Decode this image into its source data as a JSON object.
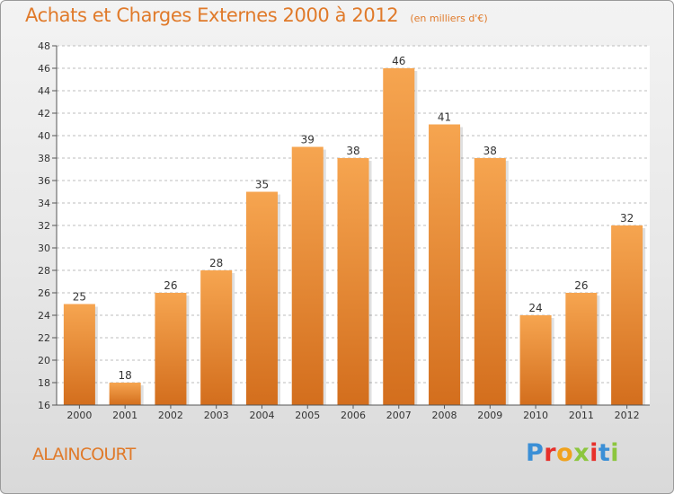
{
  "header": {
    "title": "Achats et Charges Externes 2000 à 2012",
    "subtitle": "(en milliers d'€)"
  },
  "footer": {
    "commune": "ALAINCOURT",
    "brand": [
      "P",
      "r",
      "o",
      "x",
      "i",
      "t",
      "i"
    ]
  },
  "chart_data": {
    "type": "bar",
    "title": "Achats et Charges Externes 2000 à 2012",
    "subtitle": "(en milliers d'€)",
    "categories": [
      "2000",
      "2001",
      "2002",
      "2003",
      "2004",
      "2005",
      "2006",
      "2007",
      "2008",
      "2009",
      "2010",
      "2011",
      "2012"
    ],
    "values": [
      25,
      18,
      26,
      28,
      35,
      39,
      38,
      46,
      41,
      38,
      24,
      26,
      32
    ],
    "xlabel": "",
    "ylabel": "",
    "ylim": [
      16,
      48
    ],
    "yticks": [
      16,
      18,
      20,
      22,
      24,
      26,
      28,
      30,
      32,
      34,
      36,
      38,
      40,
      42,
      44,
      46,
      48
    ],
    "grid": true,
    "bar_colors": {
      "top": "#f6a550",
      "bottom": "#d36e1d"
    }
  }
}
